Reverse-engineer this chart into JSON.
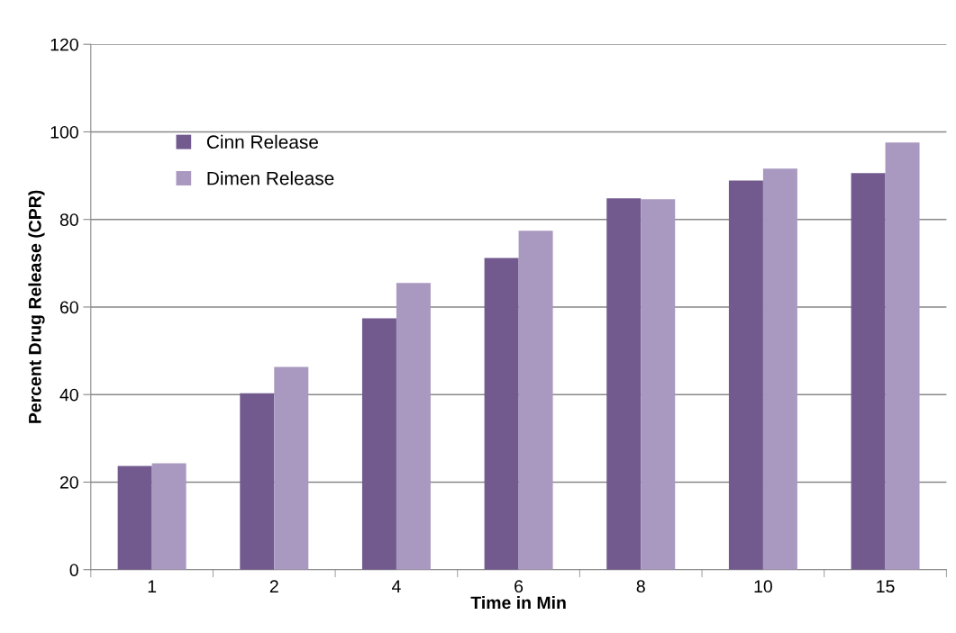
{
  "chart_data": {
    "type": "bar",
    "xlabel": "Time in Min",
    "ylabel": "Percent Drug Release (CPR)",
    "categories": [
      "1",
      "2",
      "4",
      "6",
      "8",
      "10",
      "15"
    ],
    "series": [
      {
        "name": "Cinn Release",
        "color": "#725a8f",
        "values": [
          23.7,
          40.3,
          57.4,
          71.2,
          84.8,
          88.9,
          90.6
        ]
      },
      {
        "name": "Dimen Release",
        "color": "#a999c0",
        "values": [
          24.3,
          46.3,
          65.5,
          77.4,
          84.6,
          91.6,
          97.6
        ]
      }
    ],
    "ylim": [
      0,
      120
    ],
    "yticks": [
      0,
      20,
      40,
      60,
      80,
      100,
      120
    ],
    "grid": "y",
    "legend": "top left"
  }
}
